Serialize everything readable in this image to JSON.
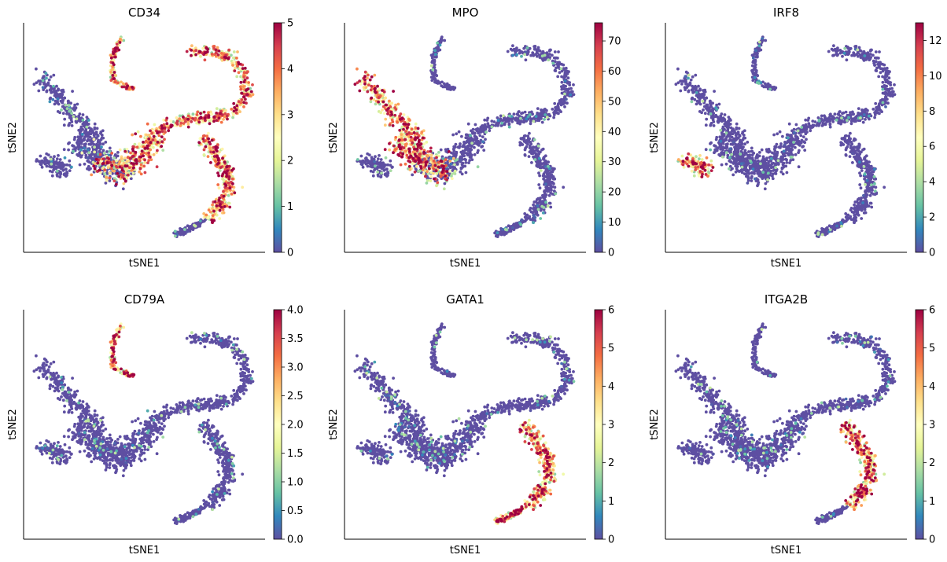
{
  "figure": {
    "type": "scatter",
    "xlabel": "tSNE1",
    "ylabel": "tSNE2",
    "colormap": "Spectral_r",
    "colormap_stops": [
      "#5e4fa2",
      "#3288bd",
      "#66c2a5",
      "#abdda4",
      "#e6f598",
      "#ffffbf",
      "#fee08b",
      "#fdae61",
      "#f46d43",
      "#d53e4f",
      "#9e0142"
    ]
  },
  "chart_data": [
    {
      "type": "scatter",
      "title": "CD34",
      "xlabel": "tSNE1",
      "ylabel": "tSNE2",
      "color_range": [
        0,
        5
      ],
      "color_ticks": [
        "0",
        "1",
        "2",
        "3",
        "4",
        "5"
      ],
      "high_regions": [
        "center",
        "spine",
        "right-branch",
        "b-cluster"
      ]
    },
    {
      "type": "scatter",
      "title": "MPO",
      "xlabel": "tSNE1",
      "ylabel": "tSNE2",
      "color_range": [
        0,
        76
      ],
      "color_ticks": [
        "0",
        "10",
        "20",
        "30",
        "40",
        "50",
        "60",
        "70"
      ],
      "high_regions": [
        "left-arm",
        "center-left"
      ]
    },
    {
      "type": "scatter",
      "title": "IRF8",
      "xlabel": "tSNE1",
      "ylabel": "tSNE2",
      "color_range": [
        0,
        13
      ],
      "color_ticks": [
        "0",
        "2",
        "4",
        "6",
        "8",
        "10",
        "12"
      ],
      "high_regions": [
        "left-lobe"
      ]
    },
    {
      "type": "scatter",
      "title": "CD79A",
      "xlabel": "tSNE1",
      "ylabel": "tSNE2",
      "color_range": [
        0,
        4
      ],
      "color_ticks": [
        "0.0",
        "0.5",
        "1.0",
        "1.5",
        "2.0",
        "2.5",
        "3.0",
        "3.5",
        "4.0"
      ],
      "high_regions": [
        "b-cluster"
      ]
    },
    {
      "type": "scatter",
      "title": "GATA1",
      "xlabel": "tSNE1",
      "ylabel": "tSNE2",
      "color_range": [
        0,
        6
      ],
      "color_ticks": [
        "0",
        "1",
        "2",
        "3",
        "4",
        "5",
        "6"
      ],
      "high_regions": [
        "right-branch",
        "branch-tip"
      ]
    },
    {
      "type": "scatter",
      "title": "ITGA2B",
      "xlabel": "tSNE1",
      "ylabel": "tSNE2",
      "color_range": [
        0,
        6
      ],
      "color_ticks": [
        "0",
        "1",
        "2",
        "3",
        "4",
        "5",
        "6"
      ],
      "high_regions": [
        "right-branch"
      ]
    }
  ]
}
